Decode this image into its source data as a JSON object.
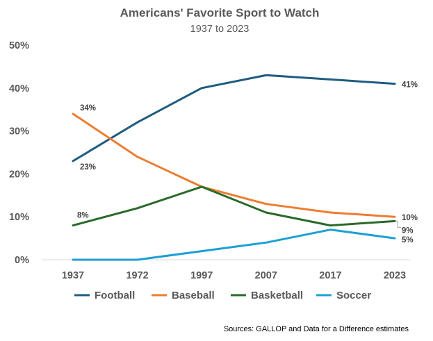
{
  "chart_data": {
    "type": "line",
    "title": "Americans' Favorite Sport to Watch",
    "subtitle": "1937 to 2023",
    "categories": [
      "1937",
      "1972",
      "1997",
      "2007",
      "2017",
      "2023"
    ],
    "ylim": [
      0,
      50
    ],
    "yticks": [
      0,
      10,
      20,
      30,
      40,
      50
    ],
    "ytick_labels": [
      "0%",
      "10%",
      "20%",
      "30%",
      "40%",
      "50%"
    ],
    "xlabel": "",
    "ylabel": "",
    "grid": false,
    "legend_position": "bottom",
    "series": [
      {
        "name": "Football",
        "color": "#1f5c7f",
        "values": [
          23,
          32,
          40,
          43,
          42,
          41
        ],
        "labels": [
          {
            "index": 0,
            "text": "23%"
          },
          {
            "index": 5,
            "text": "41%"
          }
        ]
      },
      {
        "name": "Baseball",
        "color": "#ed7d31",
        "values": [
          34,
          24,
          17,
          13,
          11,
          10
        ],
        "labels": [
          {
            "index": 0,
            "text": "34%"
          },
          {
            "index": 5,
            "text": "10%"
          }
        ]
      },
      {
        "name": "Basketball",
        "color": "#2a6a2a",
        "values": [
          8,
          12,
          17,
          11,
          8,
          9
        ],
        "labels": [
          {
            "index": 0,
            "text": "8%"
          },
          {
            "index": 5,
            "text": "9%"
          }
        ]
      },
      {
        "name": "Soccer",
        "color": "#1ca0d4",
        "values": [
          0,
          0,
          2,
          4,
          7,
          5
        ],
        "labels": [
          {
            "index": 5,
            "text": "5%"
          }
        ]
      }
    ],
    "source": "Sources: GALLOP and Data for a Difference estimates"
  }
}
